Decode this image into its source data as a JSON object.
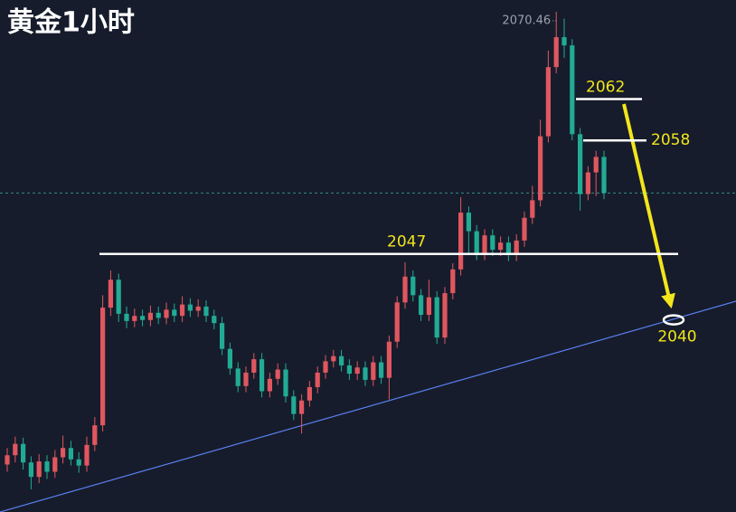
{
  "chart_data": {
    "type": "candlestick",
    "title": "黄金1小时",
    "up_color": "#e0575f",
    "down_color": "#22ab94",
    "ylim": [
      2022,
      2071.6
    ],
    "levels": [
      2062,
      2058,
      2047
    ],
    "target": 2040,
    "candles": [
      [
        2026.6,
        2028.2,
        2025.9,
        2027.5
      ],
      [
        2027.5,
        2029.3,
        2026.8,
        2028.6
      ],
      [
        2028.6,
        2029.2,
        2026.1,
        2026.8
      ],
      [
        2026.8,
        2027.4,
        2024.2,
        2025.4
      ],
      [
        2025.4,
        2027.6,
        2024.8,
        2026.9
      ],
      [
        2026.9,
        2027.5,
        2025.2,
        2025.9
      ],
      [
        2025.9,
        2028.0,
        2025.3,
        2027.3
      ],
      [
        2027.3,
        2029.4,
        2026.7,
        2028.2
      ],
      [
        2028.2,
        2028.9,
        2026.5,
        2027.1
      ],
      [
        2027.1,
        2027.8,
        2025.8,
        2026.5
      ],
      [
        2026.5,
        2029.3,
        2025.9,
        2028.5
      ],
      [
        2028.5,
        2031.2,
        2027.9,
        2030.4
      ],
      [
        2030.4,
        2043.0,
        2029.8,
        2041.8
      ],
      [
        2041.8,
        2045.4,
        2041.0,
        2044.5
      ],
      [
        2044.5,
        2045.1,
        2040.4,
        2041.2
      ],
      [
        2041.2,
        2041.9,
        2039.8,
        2040.5
      ],
      [
        2040.5,
        2041.7,
        2039.9,
        2041.0
      ],
      [
        2041.0,
        2041.6,
        2040.0,
        2040.6
      ],
      [
        2040.6,
        2042.0,
        2040.0,
        2041.3
      ],
      [
        2041.3,
        2041.9,
        2040.2,
        2040.8
      ],
      [
        2040.8,
        2042.3,
        2040.2,
        2041.6
      ],
      [
        2041.6,
        2042.2,
        2040.4,
        2041.0
      ],
      [
        2041.0,
        2042.9,
        2040.4,
        2042.1
      ],
      [
        2042.1,
        2042.7,
        2040.9,
        2041.5
      ],
      [
        2041.5,
        2042.6,
        2040.9,
        2041.9
      ],
      [
        2041.9,
        2042.5,
        2040.4,
        2041.0
      ],
      [
        2041.0,
        2041.6,
        2039.7,
        2040.3
      ],
      [
        2040.3,
        2040.9,
        2037.2,
        2037.8
      ],
      [
        2037.8,
        2038.4,
        2035.3,
        2035.9
      ],
      [
        2035.9,
        2036.5,
        2033.6,
        2034.2
      ],
      [
        2034.2,
        2036.1,
        2033.6,
        2035.5
      ],
      [
        2035.5,
        2037.4,
        2034.9,
        2036.8
      ],
      [
        2036.8,
        2037.4,
        2033.1,
        2033.7
      ],
      [
        2033.7,
        2035.5,
        2033.1,
        2034.9
      ],
      [
        2034.9,
        2036.4,
        2034.3,
        2035.8
      ],
      [
        2035.8,
        2036.4,
        2032.6,
        2033.2
      ],
      [
        2033.2,
        2033.8,
        2030.9,
        2031.5
      ],
      [
        2031.5,
        2033.4,
        2029.6,
        2032.8
      ],
      [
        2032.8,
        2034.7,
        2032.2,
        2034.1
      ],
      [
        2034.1,
        2036.1,
        2033.5,
        2035.5
      ],
      [
        2035.5,
        2037.2,
        2034.9,
        2036.6
      ],
      [
        2036.6,
        2037.7,
        2036.0,
        2037.1
      ],
      [
        2037.1,
        2037.7,
        2035.6,
        2036.2
      ],
      [
        2036.2,
        2036.8,
        2034.8,
        2035.4
      ],
      [
        2035.4,
        2036.6,
        2034.8,
        2036.0
      ],
      [
        2036.0,
        2036.6,
        2034.2,
        2034.8
      ],
      [
        2034.8,
        2037.1,
        2034.2,
        2036.5
      ],
      [
        2036.5,
        2037.1,
        2034.4,
        2035.0
      ],
      [
        2035.0,
        2039.1,
        2032.9,
        2038.5
      ],
      [
        2038.5,
        2042.9,
        2037.9,
        2042.3
      ],
      [
        2042.3,
        2046.2,
        2041.7,
        2044.8
      ],
      [
        2044.8,
        2045.4,
        2042.4,
        2043.0
      ],
      [
        2043.0,
        2043.6,
        2040.5,
        2041.1
      ],
      [
        2041.1,
        2044.5,
        2040.5,
        2042.8
      ],
      [
        2042.8,
        2043.4,
        2038.3,
        2038.9
      ],
      [
        2038.9,
        2043.8,
        2038.3,
        2043.2
      ],
      [
        2043.2,
        2046.1,
        2042.6,
        2045.5
      ],
      [
        2045.5,
        2052.5,
        2044.9,
        2051.0
      ],
      [
        2051.0,
        2051.6,
        2046.9,
        2049.2
      ],
      [
        2049.2,
        2049.8,
        2046.4,
        2047.0
      ],
      [
        2047.0,
        2049.4,
        2046.4,
        2048.8
      ],
      [
        2048.8,
        2049.4,
        2046.8,
        2047.4
      ],
      [
        2047.4,
        2048.7,
        2046.8,
        2048.1
      ],
      [
        2048.1,
        2048.7,
        2046.3,
        2046.9
      ],
      [
        2046.9,
        2048.9,
        2046.3,
        2048.3
      ],
      [
        2048.3,
        2051.1,
        2047.7,
        2050.5
      ],
      [
        2050.5,
        2053.6,
        2049.9,
        2052.2
      ],
      [
        2052.2,
        2060.0,
        2051.6,
        2058.4
      ],
      [
        2058.4,
        2066.7,
        2057.8,
        2065.1
      ],
      [
        2065.1,
        2070.46,
        2064.5,
        2068.0
      ],
      [
        2068.0,
        2069.8,
        2066.0,
        2067.2
      ],
      [
        2067.2,
        2067.8,
        2058.0,
        2058.6
      ],
      [
        2058.6,
        2059.2,
        2051.2,
        2052.8
      ],
      [
        2052.8,
        2055.5,
        2052.2,
        2054.9
      ],
      [
        2054.9,
        2057.0,
        2052.6,
        2056.4
      ],
      [
        2056.4,
        2057.0,
        2052.3,
        2052.9
      ]
    ]
  }
}
